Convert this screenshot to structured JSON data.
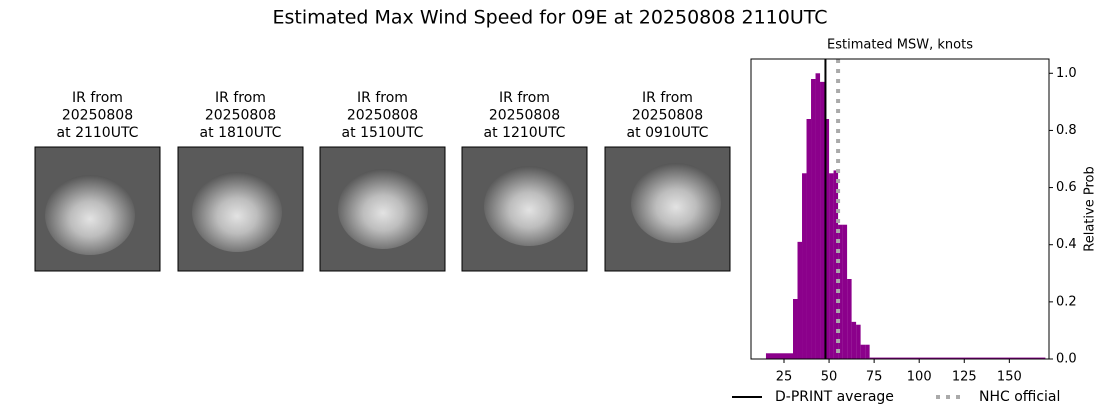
{
  "figure": {
    "title": "Estimated Max Wind Speed for 09E at 20250808 2110UTC"
  },
  "panels": [
    {
      "caption": [
        "IR from",
        "20250808",
        "at 2110UTC"
      ]
    },
    {
      "caption": [
        "IR from",
        "20250808",
        "at 1810UTC"
      ]
    },
    {
      "caption": [
        "IR from",
        "20250808",
        "at 1510UTC"
      ]
    },
    {
      "caption": [
        "IR from",
        "20250808",
        "at 1210UTC"
      ]
    },
    {
      "caption": [
        "IR from",
        "20250808",
        "at 0910UTC"
      ]
    }
  ],
  "chart_data": {
    "type": "histogram",
    "title": "Estimated MSW, knots",
    "ylabel": "Relative Prob",
    "yaxis_side": "right",
    "bins": [
      15,
      30,
      32.5,
      35,
      37.5,
      40,
      42.5,
      45,
      47.5,
      50,
      52.5,
      55,
      57.5,
      60,
      62.5,
      65,
      67.5,
      70,
      72.5,
      170
    ],
    "values": [
      0.02,
      0.21,
      0.41,
      0.65,
      0.84,
      0.98,
      1.0,
      0.97,
      0.84,
      0.65,
      0.66,
      0.47,
      0.47,
      0.28,
      0.13,
      0.12,
      0.05,
      0.05,
      0.005
    ],
    "color": "#8b008b",
    "xlim": [
      6.7,
      172
    ],
    "xticks": [
      25,
      50,
      75,
      100,
      125,
      150
    ],
    "ylim": [
      0,
      1.05
    ],
    "yticks": [
      {
        "value": 0,
        "label": "0.0"
      },
      0.2,
      0.4,
      0.6,
      0.8,
      {
        "value": 1,
        "label": "1.0"
      }
    ],
    "reference_lines": [
      {
        "name": "D-PRINT average",
        "value": 48,
        "color": "#000000",
        "style": "solid"
      },
      {
        "name": "NHC official",
        "value": 55,
        "color": "#aaaaaa",
        "style": "dotted"
      }
    ]
  }
}
